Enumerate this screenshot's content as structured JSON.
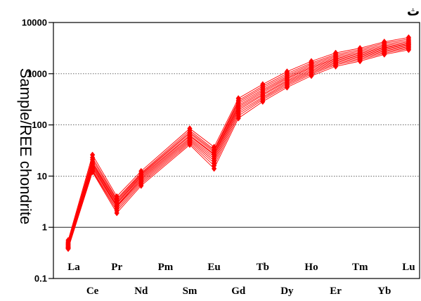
{
  "chart_data": {
    "type": "line",
    "title": "",
    "ylabel": "Sample/REE chondrite",
    "yscale": "log",
    "ylim": [
      0.1,
      10000
    ],
    "yticks": [
      "0.1",
      "1",
      "10",
      "100",
      "1000",
      "10000"
    ],
    "grid": "horizontal dotted at 10, 100, 1000",
    "corner_text": "ث",
    "categories": [
      "La",
      "Ce",
      "Pr",
      "Nd",
      "Pm",
      "Sm",
      "Eu",
      "Gd",
      "Tb",
      "Dy",
      "Ho",
      "Er",
      "Tm",
      "Yb",
      "Lu"
    ],
    "line_color": "#ff0000",
    "series": [
      {
        "values": [
          0.56,
          26,
          4.0,
          12.5,
          null,
          85,
          37,
          330,
          620,
          1100,
          1750,
          2550,
          3150,
          4200,
          5100
        ]
      },
      {
        "values": [
          0.52,
          23,
          3.6,
          11.5,
          null,
          78,
          33,
          300,
          570,
          1010,
          1620,
          2380,
          2950,
          3950,
          4750
        ]
      },
      {
        "values": [
          0.5,
          21,
          3.4,
          11.0,
          null,
          72,
          31,
          280,
          530,
          940,
          1520,
          2240,
          2780,
          3700,
          4450
        ]
      },
      {
        "values": [
          0.48,
          19,
          3.2,
          10.5,
          null,
          68,
          29,
          260,
          490,
          880,
          1430,
          2110,
          2620,
          3500,
          4200
        ]
      },
      {
        "values": [
          0.46,
          18,
          3.0,
          10.0,
          null,
          63,
          27,
          240,
          460,
          830,
          1350,
          2000,
          2490,
          3330,
          4000
        ]
      },
      {
        "values": [
          0.45,
          17,
          2.9,
          9.5,
          null,
          60,
          26,
          225,
          430,
          790,
          1290,
          1910,
          2380,
          3190,
          3840
        ]
      },
      {
        "values": [
          0.44,
          16,
          2.7,
          9.0,
          null,
          56,
          24,
          210,
          400,
          740,
          1220,
          1820,
          2270,
          3050,
          3680
        ]
      },
      {
        "values": [
          0.42,
          15,
          2.6,
          8.5,
          null,
          53,
          22,
          195,
          380,
          700,
          1160,
          1740,
          2170,
          2920,
          3530
        ]
      },
      {
        "values": [
          0.41,
          14,
          2.5,
          8.0,
          null,
          50,
          20,
          180,
          350,
          660,
          1100,
          1650,
          2070,
          2780,
          3380
        ]
      },
      {
        "values": [
          0.4,
          13,
          2.3,
          7.5,
          null,
          47,
          18,
          165,
          330,
          620,
          1040,
          1570,
          1970,
          2650,
          3230
        ]
      },
      {
        "values": [
          0.39,
          12.5,
          2.1,
          7.0,
          null,
          44,
          16,
          150,
          310,
          580,
          980,
          1490,
          1870,
          2520,
          3080
        ]
      },
      {
        "values": [
          0.38,
          12,
          1.9,
          6.5,
          null,
          41,
          14,
          135,
          285,
          540,
          910,
          1390,
          1760,
          2380,
          2920
        ]
      }
    ]
  }
}
